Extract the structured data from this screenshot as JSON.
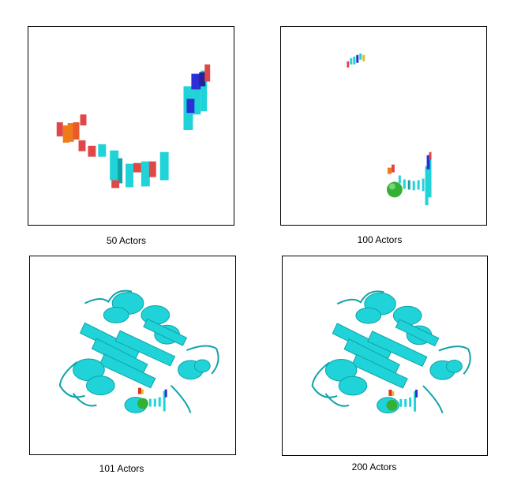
{
  "panels": [
    {
      "caption": "50 Actors"
    },
    {
      "caption": "100 Actors"
    },
    {
      "caption": "101 Actors"
    },
    {
      "caption": "200 Actors"
    }
  ],
  "colors": {
    "helix": "#1fd3d8",
    "helix_dark": "#0ea3a8",
    "strand_red": "#e04848",
    "strand_orange": "#f07a1a",
    "strand_blue": "#2a2fd6",
    "ion": "#34b034",
    "ligand_red": "#e03020",
    "ligand_yellow": "#e0c020"
  },
  "icons": [
    "protein-fragments-50",
    "protein-fragments-100",
    "protein-cartoon-101",
    "protein-cartoon-200"
  ]
}
